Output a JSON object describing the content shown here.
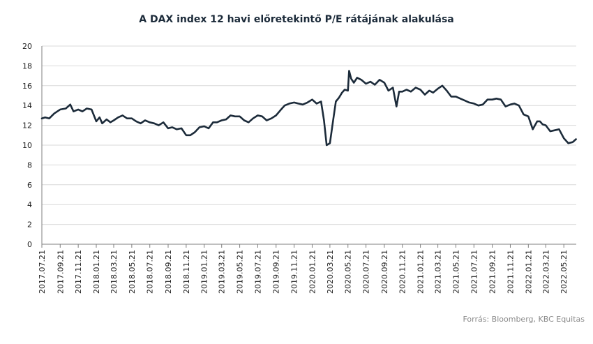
{
  "chart_data": {
    "type": "line",
    "title": "A DAX index 12 havi előretekintő P/E rátájának alakulása",
    "source": "Forrás: Bloomberg, KBC Equitas",
    "xlabel": "",
    "ylabel": "",
    "ylim": [
      0,
      20
    ],
    "yticks": [
      "0",
      "2",
      "4",
      "6",
      "8",
      "10",
      "12",
      "14",
      "16",
      "18",
      "20"
    ],
    "xticks": [
      "2017.07.21",
      "2017.09.21",
      "2017.11.21",
      "2018.01.21",
      "2018.03.21",
      "2018.05.21",
      "2018.07.21",
      "2018.09.21",
      "2018.11.21",
      "2019.01.21",
      "2019.03.21",
      "2019.05.21",
      "2019.07.21",
      "2019.09.21",
      "2019.11.21",
      "2020.01.21",
      "2020.03.21",
      "2020.05.21",
      "2020.07.21",
      "2020.09.21",
      "2020.11.21",
      "2021.01.21",
      "2021.03.21",
      "2021.05.21",
      "2021.07.21",
      "2021.09.21",
      "2021.11.21",
      "2022.01.21",
      "2022.03.21",
      "2022.05.21"
    ],
    "grid": true,
    "legend": "none",
    "line_color": "#1c2b3a",
    "series": [
      {
        "x": [
          "2017.07.21",
          "2017.08.01",
          "2017.08.15",
          "2017.09.01",
          "2017.09.21",
          "2017.10.10",
          "2017.10.25",
          "2017.11.05",
          "2017.11.21",
          "2017.12.05",
          "2017.12.20",
          "2018.01.05",
          "2018.01.21",
          "2018.02.01",
          "2018.02.10",
          "2018.02.25",
          "2018.03.10",
          "2018.03.21",
          "2018.04.05",
          "2018.04.20",
          "2018.05.05",
          "2018.05.21",
          "2018.06.05",
          "2018.06.20",
          "2018.07.05",
          "2018.07.21",
          "2018.08.05",
          "2018.08.20",
          "2018.09.05",
          "2018.09.21",
          "2018.10.05",
          "2018.10.20",
          "2018.11.05",
          "2018.11.21",
          "2018.12.05",
          "2018.12.20",
          "2019.01.05",
          "2019.01.21",
          "2019.02.05",
          "2019.02.20",
          "2019.03.05",
          "2019.03.21",
          "2019.04.05",
          "2019.04.20",
          "2019.05.05",
          "2019.05.21",
          "2019.06.05",
          "2019.06.20",
          "2019.07.05",
          "2019.07.21",
          "2019.08.05",
          "2019.08.20",
          "2019.09.05",
          "2019.09.21",
          "2019.10.05",
          "2019.10.20",
          "2019.11.05",
          "2019.11.21",
          "2019.12.05",
          "2019.12.20",
          "2020.01.05",
          "2020.01.21",
          "2020.02.05",
          "2020.02.20",
          "2020.03.01",
          "2020.03.10",
          "2020.03.21",
          "2020.04.01",
          "2020.04.10",
          "2020.04.21",
          "2020.05.01",
          "2020.05.10",
          "2020.05.21",
          "2020.05.25",
          "2020.06.01",
          "2020.06.10",
          "2020.06.21",
          "2020.07.05",
          "2020.07.21",
          "2020.08.05",
          "2020.08.20",
          "2020.09.05",
          "2020.09.21",
          "2020.10.05",
          "2020.10.20",
          "2020.11.01",
          "2020.11.10",
          "2020.11.21",
          "2020.12.05",
          "2020.12.20",
          "2021.01.05",
          "2021.01.21",
          "2021.02.05",
          "2021.02.20",
          "2021.03.05",
          "2021.03.21",
          "2021.04.05",
          "2021.04.20",
          "2021.05.05",
          "2021.05.21",
          "2021.06.05",
          "2021.06.20",
          "2021.07.05",
          "2021.07.21",
          "2021.08.05",
          "2021.08.20",
          "2021.09.05",
          "2021.09.21",
          "2021.10.05",
          "2021.10.20",
          "2021.11.05",
          "2021.11.21",
          "2021.12.05",
          "2021.12.20",
          "2022.01.05",
          "2022.01.21",
          "2022.02.05",
          "2022.02.20",
          "2022.03.01",
          "2022.03.10",
          "2022.03.21",
          "2022.04.05",
          "2022.04.20",
          "2022.05.05",
          "2022.05.21",
          "2022.06.05",
          "2022.06.20",
          "2022.07.01"
        ],
        "values": [
          12.7,
          12.8,
          12.7,
          13.2,
          13.6,
          13.7,
          14.1,
          13.4,
          13.6,
          13.4,
          13.7,
          13.6,
          12.4,
          12.8,
          12.2,
          12.6,
          12.3,
          12.5,
          12.8,
          13.0,
          12.7,
          12.7,
          12.4,
          12.2,
          12.5,
          12.3,
          12.2,
          12.0,
          12.3,
          11.7,
          11.8,
          11.6,
          11.7,
          11.0,
          11.0,
          11.3,
          11.8,
          11.9,
          11.7,
          12.3,
          12.3,
          12.5,
          12.6,
          13.0,
          12.9,
          12.9,
          12.5,
          12.3,
          12.7,
          13.0,
          12.9,
          12.5,
          12.7,
          13.0,
          13.5,
          14.0,
          14.2,
          14.3,
          14.2,
          14.1,
          14.3,
          14.6,
          14.2,
          14.4,
          12.5,
          10.0,
          10.2,
          12.5,
          14.4,
          14.8,
          15.3,
          15.6,
          15.5,
          17.5,
          16.7,
          16.3,
          16.8,
          16.6,
          16.2,
          16.4,
          16.1,
          16.6,
          16.3,
          15.5,
          15.8,
          13.9,
          15.4,
          15.4,
          15.6,
          15.4,
          15.8,
          15.6,
          15.1,
          15.5,
          15.3,
          15.7,
          16.0,
          15.5,
          14.9,
          14.9,
          14.7,
          14.5,
          14.3,
          14.2,
          14.0,
          14.1,
          14.6,
          14.6,
          14.7,
          14.6,
          13.9,
          14.1,
          14.2,
          14.0,
          13.1,
          12.9,
          11.6,
          12.4,
          12.4,
          12.1,
          12.0,
          11.4,
          11.5,
          11.6,
          10.7,
          10.2,
          10.3,
          10.6
        ]
      }
    ]
  }
}
